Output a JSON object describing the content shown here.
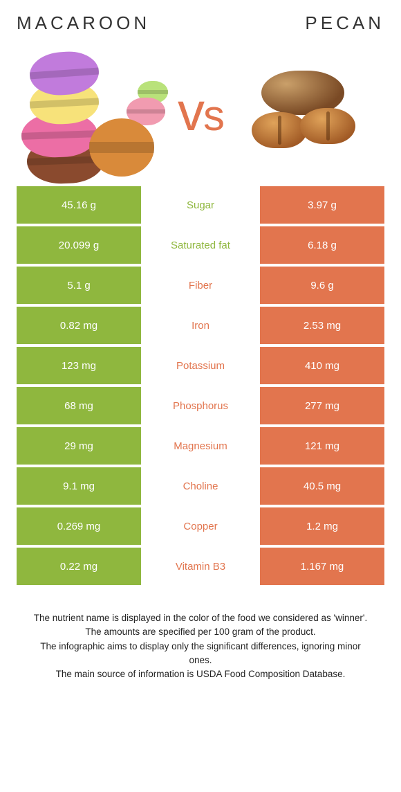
{
  "colors": {
    "left": "#8fb73e",
    "right": "#e2754e",
    "vs": "#e2754e",
    "row_gap": "#ffffff"
  },
  "titles": {
    "left": "Macaroon",
    "right": "Pecan"
  },
  "vs_label": "vs",
  "rows": [
    {
      "label": "Sugar",
      "left": "45.16 g",
      "right": "3.97 g",
      "winner": "left"
    },
    {
      "label": "Saturated fat",
      "left": "20.099 g",
      "right": "6.18 g",
      "winner": "left"
    },
    {
      "label": "Fiber",
      "left": "5.1 g",
      "right": "9.6 g",
      "winner": "right"
    },
    {
      "label": "Iron",
      "left": "0.82 mg",
      "right": "2.53 mg",
      "winner": "right"
    },
    {
      "label": "Potassium",
      "left": "123 mg",
      "right": "410 mg",
      "winner": "right"
    },
    {
      "label": "Phosphorus",
      "left": "68 mg",
      "right": "277 mg",
      "winner": "right"
    },
    {
      "label": "Magnesium",
      "left": "29 mg",
      "right": "121 mg",
      "winner": "right"
    },
    {
      "label": "Choline",
      "left": "9.1 mg",
      "right": "40.5 mg",
      "winner": "right"
    },
    {
      "label": "Copper",
      "left": "0.269 mg",
      "right": "1.2 mg",
      "winner": "right"
    },
    {
      "label": "Vitamin B3",
      "left": "0.22 mg",
      "right": "1.167 mg",
      "winner": "right"
    }
  ],
  "footer": [
    "The nutrient name is displayed in the color of the food we considered as 'winner'.",
    "The amounts are specified per 100 gram of the product.",
    "The infographic aims to display only the significant differences, ignoring minor ones.",
    "The main source of information is USDA Food Composition Database."
  ]
}
